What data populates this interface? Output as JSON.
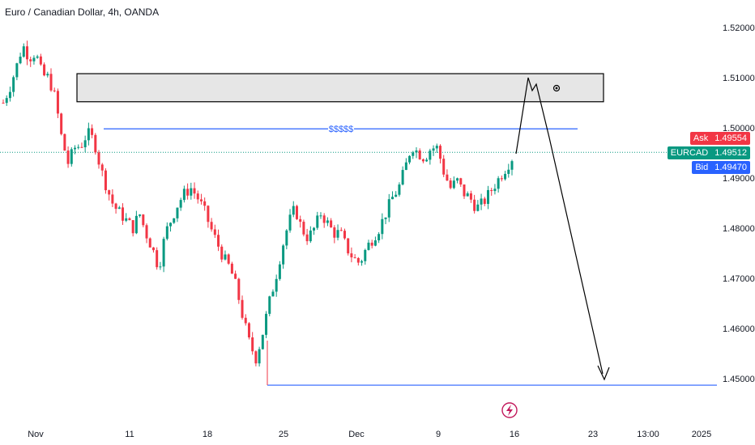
{
  "header": {
    "title": "Euro / Canadian Dollar, 4h, OANDA"
  },
  "quote": {
    "symbol": "EURCAD",
    "ask_label": "Ask",
    "ask_value": "1.49554",
    "last_value": "1.49512",
    "bid_label": "Bid",
    "bid_value": "1.49470"
  },
  "colors": {
    "up": "#089981",
    "down": "#f23645",
    "level": "#2962ff",
    "zone_fill": "#e6e6e6"
  },
  "chart_data": {
    "type": "candlestick",
    "symbol": "EURCAD",
    "interval": "4h",
    "y_ticks": [
      "1.52000",
      "1.51000",
      "1.50000",
      "1.49000",
      "1.48000",
      "1.47000",
      "1.46000",
      "1.45000"
    ],
    "x_ticks": [
      "Nov",
      "11",
      "18",
      "25",
      "Dec",
      "9",
      "16",
      "23",
      "13:00",
      "2025"
    ],
    "ylim": [
      1.444,
      1.526
    ],
    "grid": false,
    "annotations": {
      "supply_zone": {
        "top": 1.5108,
        "bottom": 1.5052
      },
      "liquidity_level": {
        "value": 1.4998,
        "label": "$$$$$"
      },
      "target_level": {
        "value": 1.4487
      },
      "current_price_line": 1.49512
    },
    "approx_close_path": [
      1.505,
      1.508,
      1.512,
      1.5165,
      1.514,
      1.515,
      1.5105,
      1.51,
      1.506,
      1.498,
      1.493,
      1.496,
      1.4965,
      1.499,
      1.4975,
      1.492,
      1.488,
      1.4845,
      1.483,
      1.4815,
      1.48,
      1.483,
      1.479,
      1.476,
      1.472,
      1.479,
      1.482,
      1.485,
      1.487,
      1.488,
      1.486,
      1.4835,
      1.48,
      1.477,
      1.474,
      1.472,
      1.468,
      1.462,
      1.457,
      1.454,
      1.459,
      1.465,
      1.47,
      1.476,
      1.481,
      1.484,
      1.48,
      1.478,
      1.48,
      1.483,
      1.481,
      1.479,
      1.479,
      1.476,
      1.474,
      1.473,
      1.476,
      1.478,
      1.48,
      1.483,
      1.486,
      1.488,
      1.492,
      1.4965,
      1.495,
      1.494,
      1.496,
      1.496,
      1.491,
      1.488,
      1.4895,
      1.487,
      1.486,
      1.484,
      1.485,
      1.487,
      1.489,
      1.491,
      1.493,
      1.4951
    ]
  }
}
